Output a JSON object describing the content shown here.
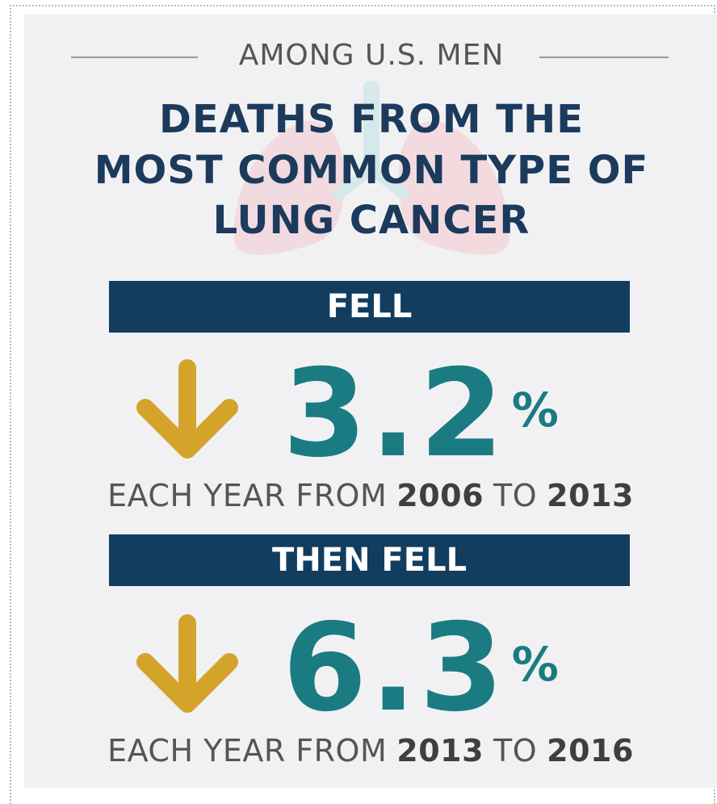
{
  "kicker": "AMONG U.S. MEN",
  "title": [
    "DEATHS FROM THE",
    "MOST COMMON TYPE OF",
    "LUNG CANCER"
  ],
  "stats": [
    {
      "banner": "FELL",
      "value": "3.2",
      "unit": "%",
      "prefix": "EACH YEAR FROM",
      "start": "2006",
      "mid": "TO",
      "end": "2013"
    },
    {
      "banner": "THEN FELL",
      "value": "6.3",
      "unit": "%",
      "prefix": "EACH YEAR FROM",
      "start": "2013",
      "mid": "TO",
      "end": "2016"
    }
  ]
}
